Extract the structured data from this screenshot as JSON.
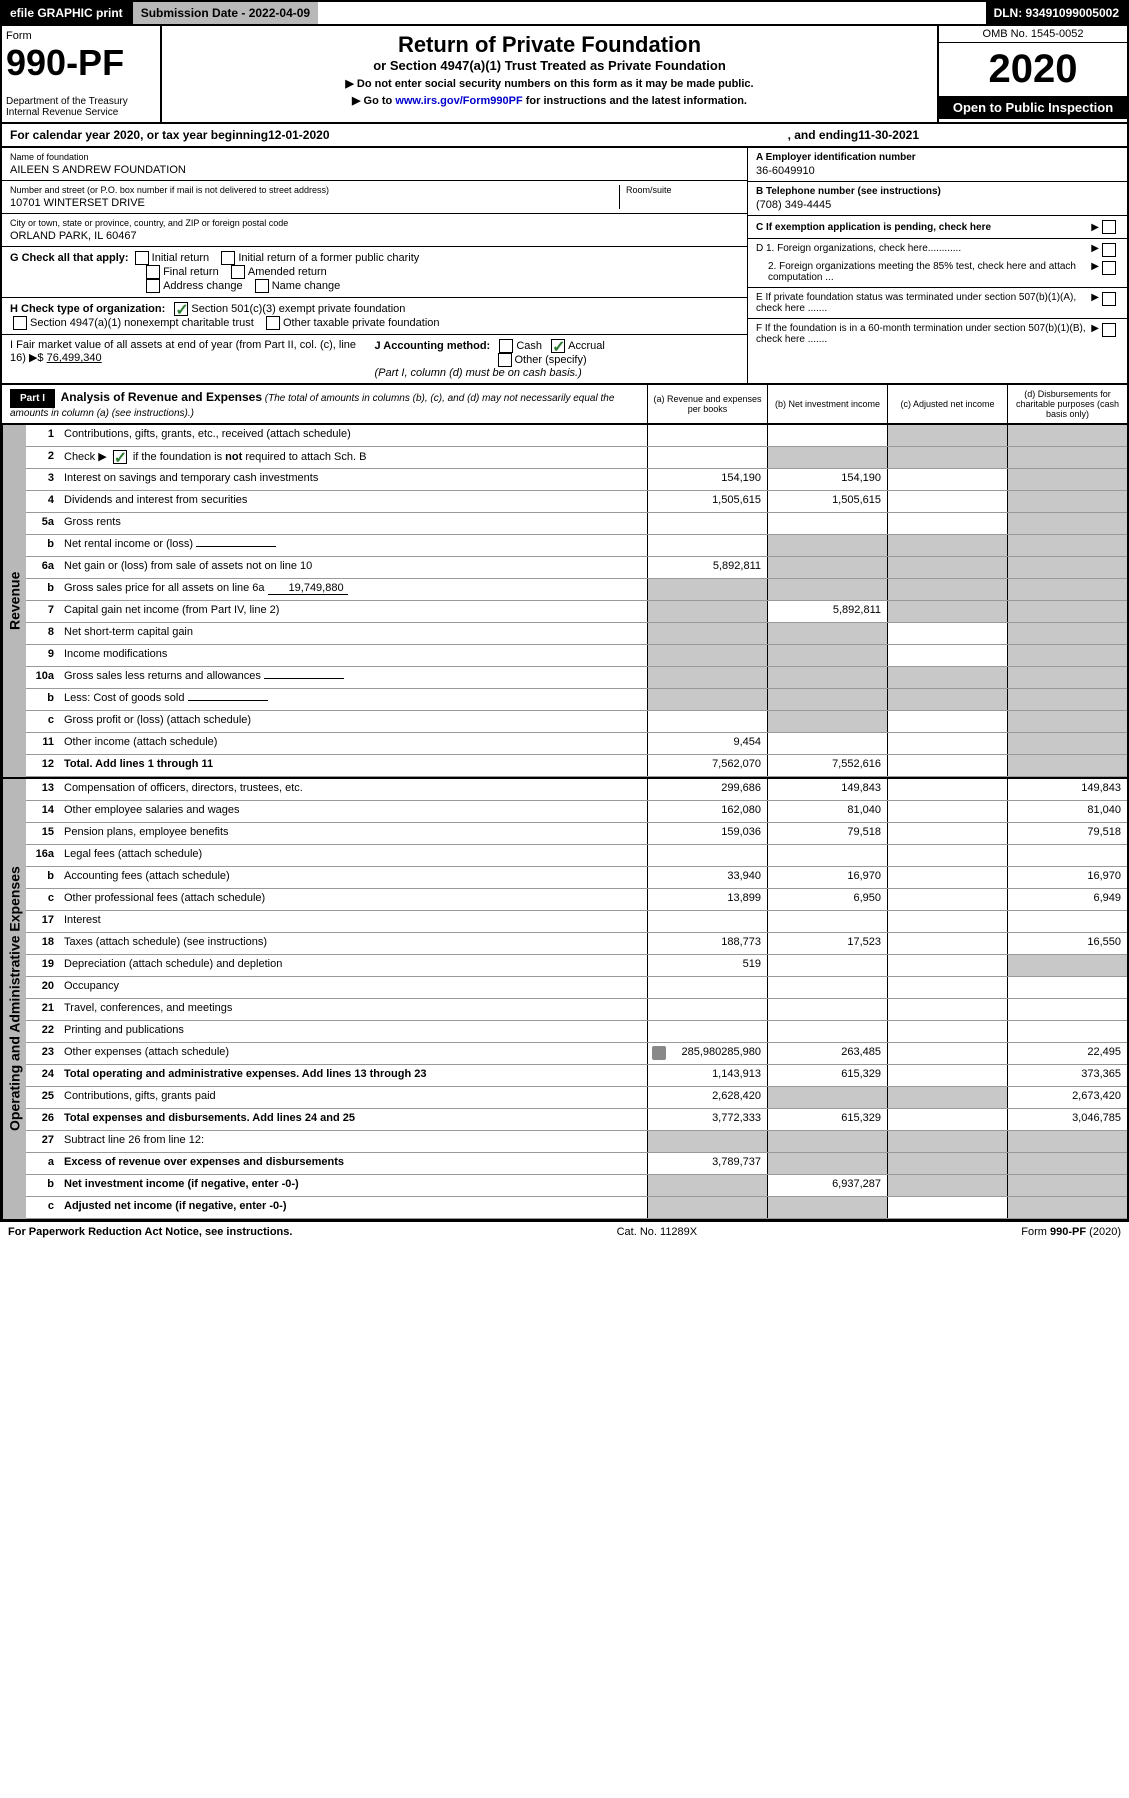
{
  "topbar": {
    "efile": "efile GRAPHIC print",
    "subdate_label": "Submission Date - 2022-04-09",
    "dln": "DLN: 93491099005002"
  },
  "header": {
    "form_label": "Form",
    "form_number": "990-PF",
    "dept": "Department of the Treasury\nInternal Revenue Service",
    "title": "Return of Private Foundation",
    "subtitle": "or Section 4947(a)(1) Trust Treated as Private Foundation",
    "instr1": "▶ Do not enter social security numbers on this form as it may be made public.",
    "instr2": "▶ Go to www.irs.gov/Form990PF for instructions and the latest information.",
    "link_text": "www.irs.gov/Form990PF",
    "omb": "OMB No. 1545-0052",
    "year": "2020",
    "open_public": "Open to Public Inspection"
  },
  "calyear": {
    "prefix": "For calendar year 2020, or tax year beginning ",
    "begin": "12-01-2020",
    "mid": ", and ending ",
    "end": "11-30-2021"
  },
  "info": {
    "name_lbl": "Name of foundation",
    "name": "AILEEN S ANDREW FOUNDATION",
    "addr_lbl": "Number and street (or P.O. box number if mail is not delivered to street address)",
    "addr": "10701 WINTERSET DRIVE",
    "room_lbl": "Room/suite",
    "city_lbl": "City or town, state or province, country, and ZIP or foreign postal code",
    "city": "ORLAND PARK, IL  60467",
    "ein_lbl": "A Employer identification number",
    "ein": "36-6049910",
    "tel_lbl": "B Telephone number (see instructions)",
    "tel": "(708) 349-4445",
    "c_lbl": "C If exemption application is pending, check here",
    "d1": "D 1. Foreign organizations, check here............",
    "d2": "2. Foreign organizations meeting the 85% test, check here and attach computation ...",
    "e": "E If private foundation status was terminated under section 507(b)(1)(A), check here .......",
    "f": "F If the foundation is in a 60-month termination under section 507(b)(1)(B), check here .......",
    "g_label": "G Check all that apply:",
    "g_opts": [
      "Initial return",
      "Initial return of a former public charity",
      "Final return",
      "Amended return",
      "Address change",
      "Name change"
    ],
    "h_label": "H Check type of organization:",
    "h_opt1": "Section 501(c)(3) exempt private foundation",
    "h_opt2": "Section 4947(a)(1) nonexempt charitable trust",
    "h_opt3": "Other taxable private foundation",
    "i_label": "I Fair market value of all assets at end of year (from Part II, col. (c), line 16) ▶$",
    "i_value": "76,499,340",
    "j_label": "J Accounting method:",
    "j_cash": "Cash",
    "j_accrual": "Accrual",
    "j_other": "Other (specify)",
    "j_note": "(Part I, column (d) must be on cash basis.)"
  },
  "part1": {
    "label": "Part I",
    "title": "Analysis of Revenue and Expenses",
    "note": "(The total of amounts in columns (b), (c), and (d) may not necessarily equal the amounts in column (a) (see instructions).)",
    "col_a": "(a) Revenue and expenses per books",
    "col_b": "(b) Net investment income",
    "col_c": "(c) Adjusted net income",
    "col_d": "(d) Disbursements for charitable purposes (cash basis only)"
  },
  "sides": {
    "revenue": "Revenue",
    "opex": "Operating and Administrative Expenses"
  },
  "rows": [
    {
      "n": "1",
      "d": "Contributions, gifts, grants, etc., received (attach schedule)",
      "a": "",
      "b": "",
      "c": "g",
      "dd": "g"
    },
    {
      "n": "2",
      "d": "Check ▶ ☑ if the foundation is not required to attach Sch. B",
      "a": "",
      "b": "g",
      "c": "g",
      "dd": "g",
      "bold_check": true
    },
    {
      "n": "3",
      "d": "Interest on savings and temporary cash investments",
      "a": "154,190",
      "b": "154,190",
      "c": "",
      "dd": "g"
    },
    {
      "n": "4",
      "d": "Dividends and interest from securities",
      "a": "1,505,615",
      "b": "1,505,615",
      "c": "",
      "dd": "g"
    },
    {
      "n": "5a",
      "d": "Gross rents",
      "a": "",
      "b": "",
      "c": "",
      "dd": "g"
    },
    {
      "n": "b",
      "d": "Net rental income or (loss)",
      "a": "",
      "b": "g",
      "c": "g",
      "dd": "g",
      "inline": ""
    },
    {
      "n": "6a",
      "d": "Net gain or (loss) from sale of assets not on line 10",
      "a": "5,892,811",
      "b": "g",
      "c": "g",
      "dd": "g"
    },
    {
      "n": "b",
      "d": "Gross sales price for all assets on line 6a",
      "a": "g",
      "b": "g",
      "c": "g",
      "dd": "g",
      "inline": "19,749,880"
    },
    {
      "n": "7",
      "d": "Capital gain net income (from Part IV, line 2)",
      "a": "g",
      "b": "5,892,811",
      "c": "g",
      "dd": "g"
    },
    {
      "n": "8",
      "d": "Net short-term capital gain",
      "a": "g",
      "b": "g",
      "c": "",
      "dd": "g"
    },
    {
      "n": "9",
      "d": "Income modifications",
      "a": "g",
      "b": "g",
      "c": "",
      "dd": "g"
    },
    {
      "n": "10a",
      "d": "Gross sales less returns and allowances",
      "a": "g",
      "b": "g",
      "c": "g",
      "dd": "g",
      "inline": ""
    },
    {
      "n": "b",
      "d": "Less: Cost of goods sold",
      "a": "g",
      "b": "g",
      "c": "g",
      "dd": "g",
      "inline": ""
    },
    {
      "n": "c",
      "d": "Gross profit or (loss) (attach schedule)",
      "a": "",
      "b": "g",
      "c": "",
      "dd": "g"
    },
    {
      "n": "11",
      "d": "Other income (attach schedule)",
      "a": "9,454",
      "b": "",
      "c": "",
      "dd": "g"
    },
    {
      "n": "12",
      "d": "Total. Add lines 1 through 11",
      "a": "7,562,070",
      "b": "7,552,616",
      "c": "",
      "dd": "g",
      "bold": true
    }
  ],
  "opex_rows": [
    {
      "n": "13",
      "d": "Compensation of officers, directors, trustees, etc.",
      "a": "299,686",
      "b": "149,843",
      "c": "",
      "dd": "149,843"
    },
    {
      "n": "14",
      "d": "Other employee salaries and wages",
      "a": "162,080",
      "b": "81,040",
      "c": "",
      "dd": "81,040"
    },
    {
      "n": "15",
      "d": "Pension plans, employee benefits",
      "a": "159,036",
      "b": "79,518",
      "c": "",
      "dd": "79,518"
    },
    {
      "n": "16a",
      "d": "Legal fees (attach schedule)",
      "a": "",
      "b": "",
      "c": "",
      "dd": ""
    },
    {
      "n": "b",
      "d": "Accounting fees (attach schedule)",
      "a": "33,940",
      "b": "16,970",
      "c": "",
      "dd": "16,970"
    },
    {
      "n": "c",
      "d": "Other professional fees (attach schedule)",
      "a": "13,899",
      "b": "6,950",
      "c": "",
      "dd": "6,949"
    },
    {
      "n": "17",
      "d": "Interest",
      "a": "",
      "b": "",
      "c": "",
      "dd": ""
    },
    {
      "n": "18",
      "d": "Taxes (attach schedule) (see instructions)",
      "a": "188,773",
      "b": "17,523",
      "c": "",
      "dd": "16,550"
    },
    {
      "n": "19",
      "d": "Depreciation (attach schedule) and depletion",
      "a": "519",
      "b": "",
      "c": "",
      "dd": "g"
    },
    {
      "n": "20",
      "d": "Occupancy",
      "a": "",
      "b": "",
      "c": "",
      "dd": ""
    },
    {
      "n": "21",
      "d": "Travel, conferences, and meetings",
      "a": "",
      "b": "",
      "c": "",
      "dd": ""
    },
    {
      "n": "22",
      "d": "Printing and publications",
      "a": "",
      "b": "",
      "c": "",
      "dd": ""
    },
    {
      "n": "23",
      "d": "Other expenses (attach schedule)",
      "a": "285,980",
      "b": "263,485",
      "c": "",
      "dd": "22,495",
      "attach": true
    },
    {
      "n": "24",
      "d": "Total operating and administrative expenses. Add lines 13 through 23",
      "a": "1,143,913",
      "b": "615,329",
      "c": "",
      "dd": "373,365",
      "bold": true
    },
    {
      "n": "25",
      "d": "Contributions, gifts, grants paid",
      "a": "2,628,420",
      "b": "g",
      "c": "g",
      "dd": "2,673,420"
    },
    {
      "n": "26",
      "d": "Total expenses and disbursements. Add lines 24 and 25",
      "a": "3,772,333",
      "b": "615,329",
      "c": "",
      "dd": "3,046,785",
      "bold": true
    },
    {
      "n": "27",
      "d": "Subtract line 26 from line 12:",
      "a": "g",
      "b": "g",
      "c": "g",
      "dd": "g"
    },
    {
      "n": "a",
      "d": "Excess of revenue over expenses and disbursements",
      "a": "3,789,737",
      "b": "g",
      "c": "g",
      "dd": "g",
      "bold": true
    },
    {
      "n": "b",
      "d": "Net investment income (if negative, enter -0-)",
      "a": "g",
      "b": "6,937,287",
      "c": "g",
      "dd": "g",
      "bold": true
    },
    {
      "n": "c",
      "d": "Adjusted net income (if negative, enter -0-)",
      "a": "g",
      "b": "g",
      "c": "",
      "dd": "g",
      "bold": true
    }
  ],
  "footer": {
    "left": "For Paperwork Reduction Act Notice, see instructions.",
    "mid": "Cat. No. 11289X",
    "right": "Form 990-PF (2020)"
  },
  "colors": {
    "grey": "#c8c8c8",
    "black": "#000000",
    "green_check": "#2e7d32",
    "link": "#0000cc"
  }
}
